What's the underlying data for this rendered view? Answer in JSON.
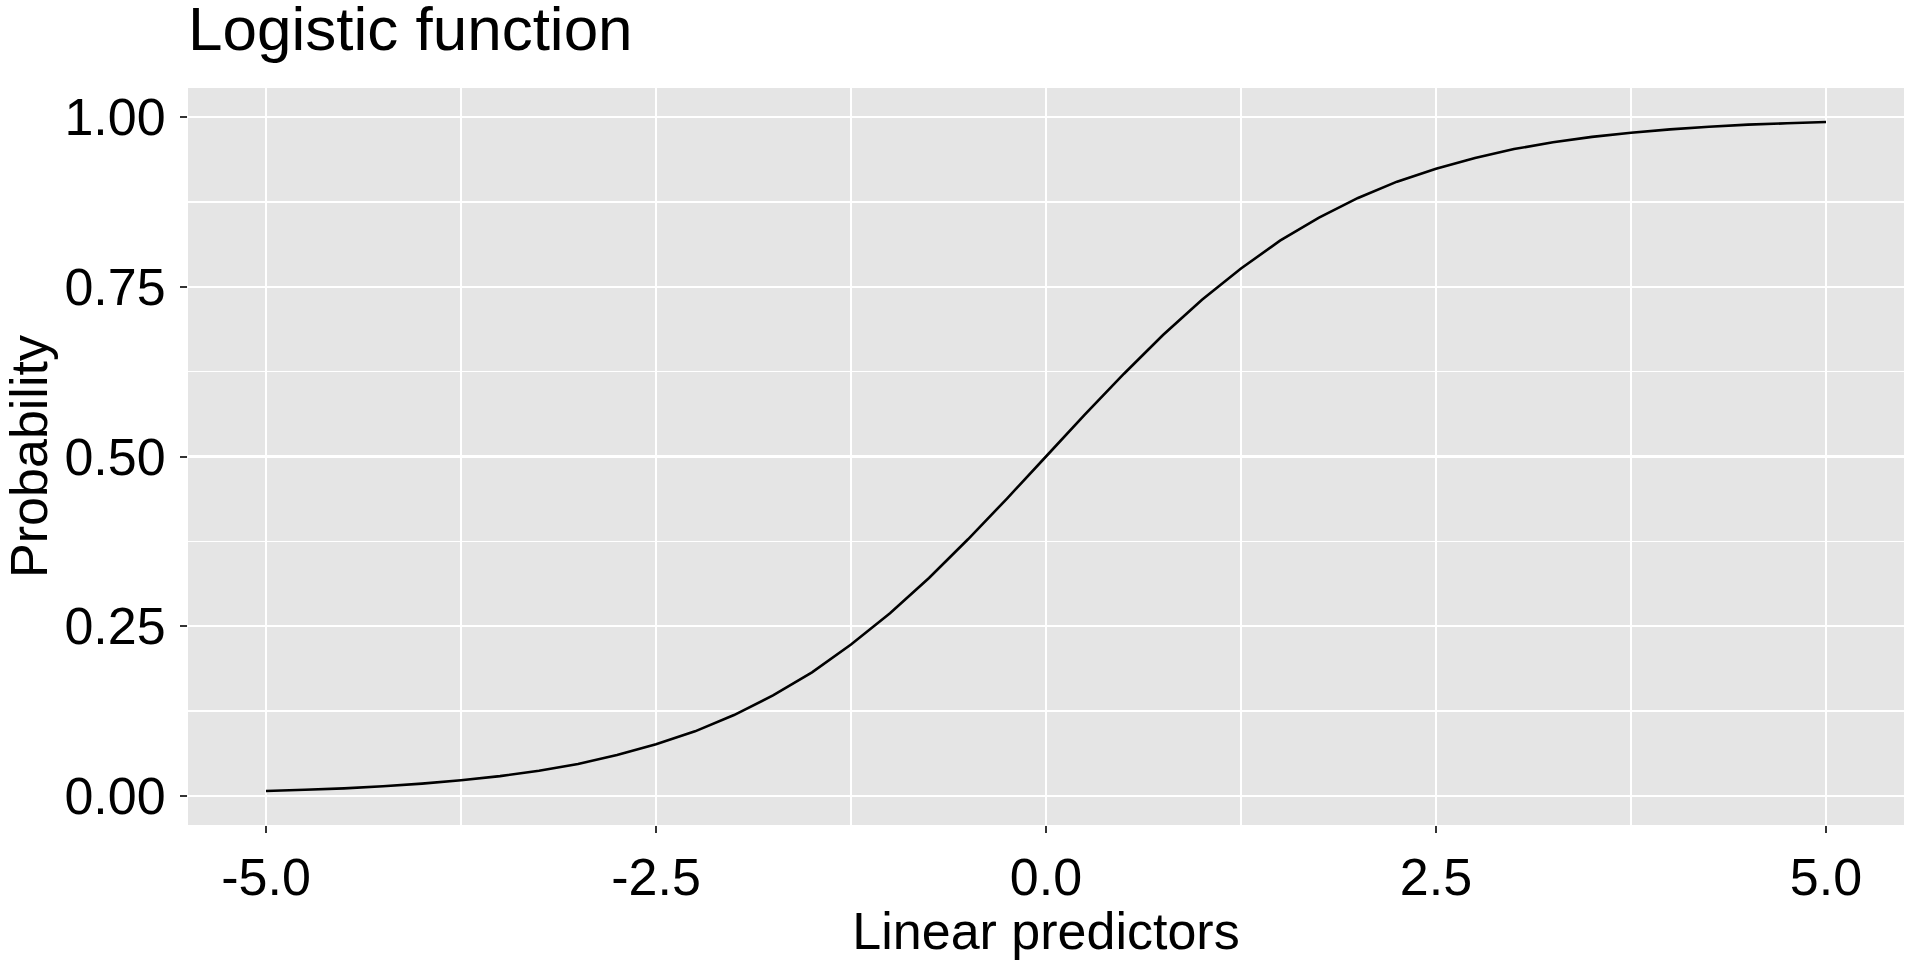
{
  "chart_data": {
    "type": "line",
    "title": "Logistic function",
    "xlabel": "Linear predictors",
    "ylabel": "Probability",
    "x": [
      -5,
      -4.75,
      -4.5,
      -4.25,
      -4,
      -3.75,
      -3.5,
      -3.25,
      -3,
      -2.75,
      -2.5,
      -2.25,
      -2,
      -1.75,
      -1.5,
      -1.25,
      -1,
      -0.75,
      -0.5,
      -0.25,
      0,
      0.25,
      0.5,
      0.75,
      1,
      1.25,
      1.5,
      1.75,
      2,
      2.25,
      2.5,
      2.75,
      3,
      3.25,
      3.5,
      3.75,
      4,
      4.25,
      4.5,
      4.75,
      5
    ],
    "values": [
      0.007,
      0.009,
      0.011,
      0.014,
      0.018,
      0.023,
      0.029,
      0.037,
      0.047,
      0.06,
      0.076,
      0.095,
      0.119,
      0.148,
      0.182,
      0.223,
      0.269,
      0.321,
      0.378,
      0.438,
      0.5,
      0.562,
      0.622,
      0.679,
      0.731,
      0.777,
      0.818,
      0.852,
      0.881,
      0.905,
      0.924,
      0.94,
      0.953,
      0.963,
      0.971,
      0.977,
      0.982,
      0.986,
      0.989,
      0.991,
      0.993
    ],
    "color": "#000000",
    "line_style": "solid",
    "xlim": [
      -5.5,
      5.5
    ],
    "xticks": [
      {
        "value": -5,
        "label": "-5.0"
      },
      {
        "value": -2.5,
        "label": "-2.5"
      },
      {
        "value": 0,
        "label": "0.0"
      },
      {
        "value": 2.5,
        "label": "2.5"
      },
      {
        "value": 5,
        "label": "5.0"
      }
    ],
    "ylim": [
      -0.043,
      1.043
    ],
    "yticks": [
      {
        "value": 0,
        "label": "0.00"
      },
      {
        "value": 0.25,
        "label": "0.25"
      },
      {
        "value": 0.5,
        "label": "0.50"
      },
      {
        "value": 0.75,
        "label": "0.75"
      },
      {
        "value": 1,
        "label": "1.00"
      }
    ],
    "grid": true
  }
}
